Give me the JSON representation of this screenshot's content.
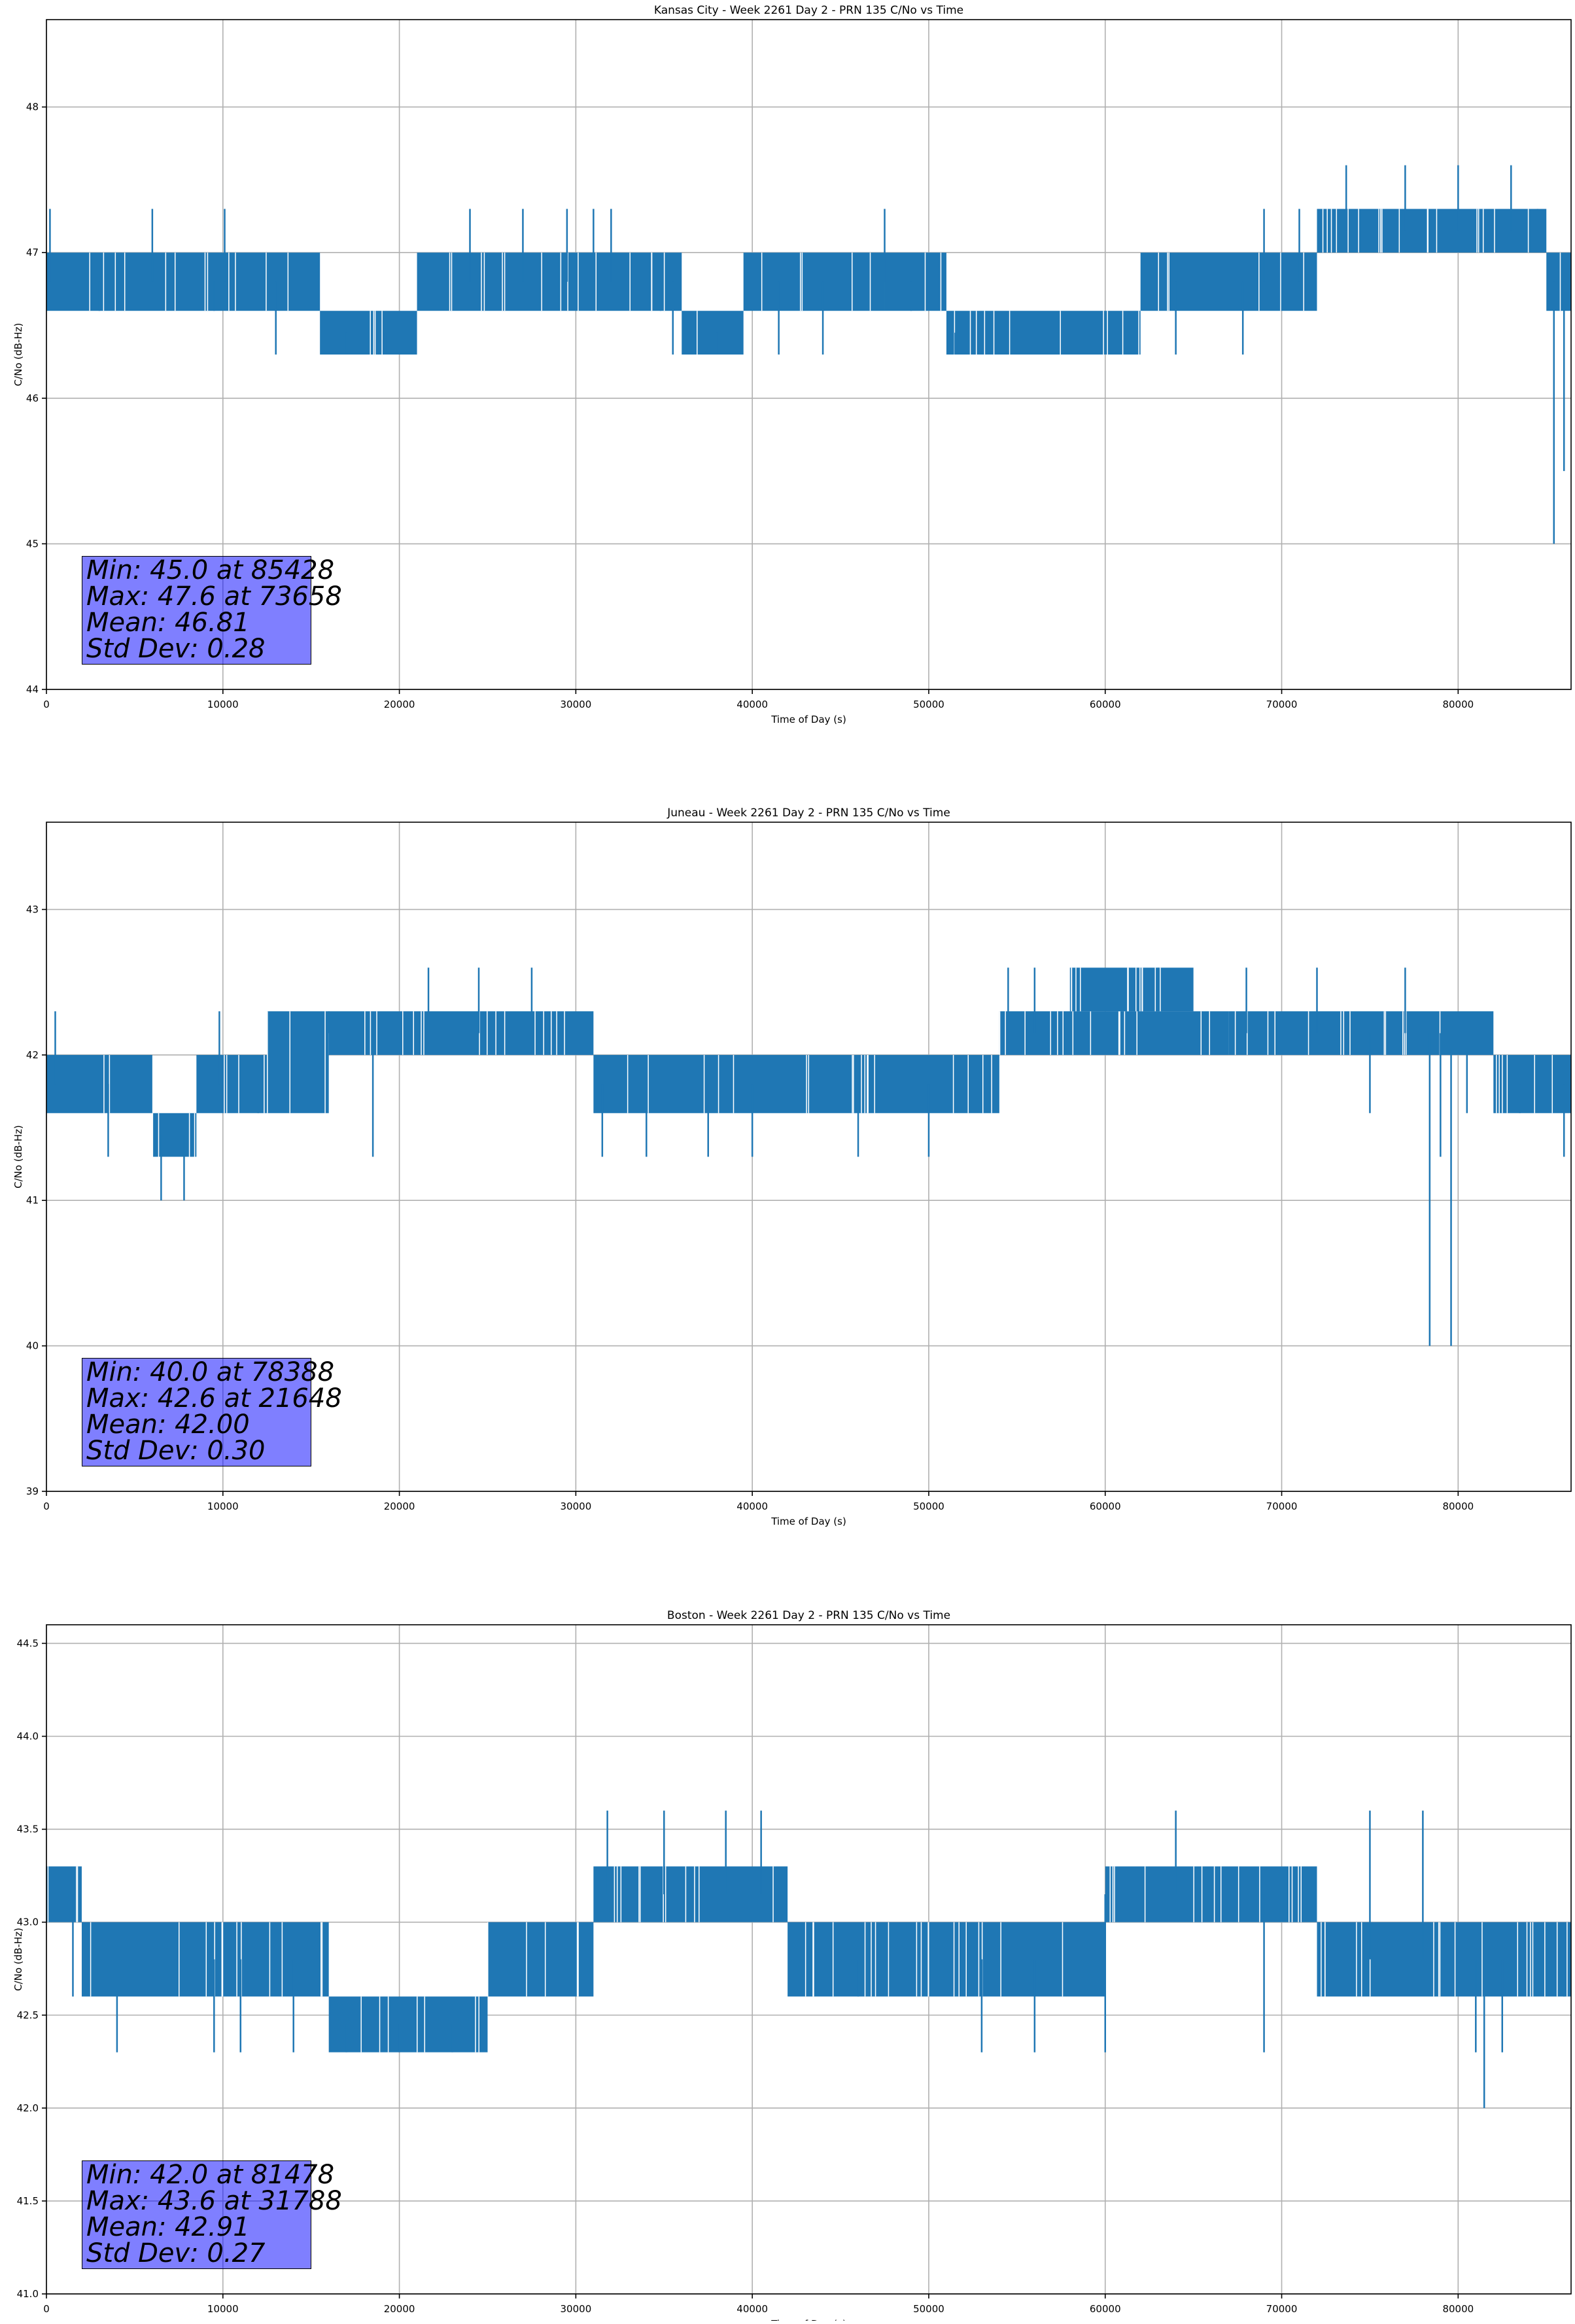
{
  "chart_data": [
    {
      "type": "line",
      "title": "Kansas City - Week 2261 Day 2 - PRN 135 C/No vs Time",
      "xlabel": "Time of Day (s)",
      "ylabel": "C/No (dB-Hz)",
      "xlim": [
        0,
        86400
      ],
      "ylim": [
        44.0,
        48.6
      ],
      "xticks": [
        0,
        10000,
        20000,
        30000,
        40000,
        50000,
        60000,
        70000,
        80000
      ],
      "yticks": [
        44,
        45,
        46,
        47,
        48
      ],
      "ytick_labels": [
        "44",
        "45",
        "46",
        "47",
        "48"
      ],
      "grid": true,
      "color": "#1f77b4",
      "stats": [
        "Min: 45.0 at 85428",
        "Max: 47.6 at 73658",
        "Mean: 46.81",
        "Std Dev: 0.28"
      ],
      "bands": [
        [
          0,
          15500,
          46.6,
          47.0
        ],
        [
          15500,
          21000,
          46.3,
          46.6
        ],
        [
          21000,
          36000,
          46.6,
          47.0
        ],
        [
          36000,
          39500,
          46.3,
          46.6
        ],
        [
          39500,
          47500,
          46.6,
          47.0
        ],
        [
          47500,
          51000,
          46.6,
          47.0
        ],
        [
          51000,
          62000,
          46.3,
          46.6
        ],
        [
          62000,
          72000,
          46.6,
          47.0
        ],
        [
          72000,
          85000,
          47.0,
          47.3
        ],
        [
          85000,
          86400,
          46.6,
          47.0
        ]
      ],
      "series": [
        {
          "x": [
            200,
            3000,
            6000,
            9500,
            10100,
            13000,
            17000,
            19200,
            24000,
            27000,
            29500,
            31000,
            32000,
            34800,
            35500,
            38000,
            41500,
            44000,
            47500,
            49000,
            51500,
            55000,
            60000,
            64000,
            67800,
            69000,
            71000,
            73658,
            77000,
            80000,
            83000,
            84500,
            85428,
            86000
          ],
          "y": [
            47.3,
            46.6,
            47.3,
            46.6,
            47.3,
            46.3,
            46.3,
            46.3,
            47.3,
            47.3,
            47.3,
            47.3,
            47.3,
            46.6,
            46.3,
            46.3,
            46.3,
            46.3,
            47.3,
            46.6,
            46.3,
            46.3,
            46.3,
            46.3,
            46.3,
            47.3,
            47.3,
            47.6,
            47.6,
            47.6,
            47.6,
            47.3,
            45.0,
            45.5
          ]
        }
      ]
    },
    {
      "type": "line",
      "title": "Juneau - Week 2261 Day 2 - PRN 135 C/No vs Time",
      "xlabel": "Time of Day (s)",
      "ylabel": "C/No (dB-Hz)",
      "xlim": [
        0,
        86400
      ],
      "ylim": [
        39.0,
        43.6
      ],
      "xticks": [
        0,
        10000,
        20000,
        30000,
        40000,
        50000,
        60000,
        70000,
        80000
      ],
      "yticks": [
        39,
        40,
        41,
        42,
        43
      ],
      "ytick_labels": [
        "39",
        "40",
        "41",
        "42",
        "43"
      ],
      "grid": true,
      "color": "#1f77b4",
      "stats": [
        "Min: 40.0 at 78388",
        "Max: 42.6 at 21648",
        "Mean: 42.00",
        "Std Dev: 0.30"
      ],
      "bands": [
        [
          0,
          6000,
          41.6,
          42.0
        ],
        [
          6000,
          8500,
          41.3,
          41.6
        ],
        [
          8500,
          12500,
          41.6,
          42.0
        ],
        [
          12500,
          16000,
          41.6,
          42.3
        ],
        [
          16000,
          31000,
          42.0,
          42.3
        ],
        [
          31000,
          54000,
          41.6,
          42.0
        ],
        [
          54000,
          67000,
          42.0,
          42.3
        ],
        [
          58000,
          65000,
          42.3,
          42.6
        ],
        [
          67000,
          82000,
          42.0,
          42.3
        ],
        [
          82000,
          86400,
          41.6,
          42.0
        ]
      ],
      "series": [
        {
          "x": [
            500,
            3500,
            6500,
            7800,
            9800,
            12000,
            16000,
            18500,
            21648,
            24500,
            27500,
            31500,
            34000,
            37500,
            40000,
            46000,
            50000,
            54500,
            56000,
            63000,
            68000,
            72000,
            75000,
            77000,
            78388,
            79000,
            79600,
            80500,
            83500,
            86000
          ],
          "y": [
            42.3,
            41.3,
            41.0,
            41.0,
            42.3,
            41.6,
            42.3,
            41.3,
            42.6,
            42.6,
            42.6,
            41.3,
            41.3,
            41.3,
            41.3,
            41.3,
            41.3,
            42.6,
            42.6,
            42.6,
            42.6,
            42.6,
            41.6,
            42.6,
            40.0,
            41.3,
            40.0,
            41.6,
            41.6,
            41.3
          ]
        }
      ]
    },
    {
      "type": "line",
      "title": "Boston - Week 2261 Day 2 - PRN 135 C/No vs Time",
      "xlabel": "Time of Day (s)",
      "ylabel": "C/No (dB-Hz)",
      "xlim": [
        0,
        86400
      ],
      "ylim": [
        41.0,
        44.6
      ],
      "xticks": [
        0,
        10000,
        20000,
        30000,
        40000,
        50000,
        60000,
        70000,
        80000
      ],
      "yticks": [
        41.0,
        41.5,
        42.0,
        42.5,
        43.0,
        43.5,
        44.0,
        44.5
      ],
      "ytick_labels": [
        "41.0",
        "41.5",
        "42.0",
        "42.5",
        "43.0",
        "43.5",
        "44.0",
        "44.5"
      ],
      "grid": true,
      "color": "#1f77b4",
      "stats": [
        "Min: 42.0 at 81478",
        "Max: 43.6 at 31788",
        "Mean: 42.91",
        "Std Dev: 0.27"
      ],
      "bands": [
        [
          0,
          2000,
          43.0,
          43.3
        ],
        [
          2000,
          16000,
          42.6,
          43.0
        ],
        [
          16000,
          25000,
          42.3,
          42.6
        ],
        [
          25000,
          31000,
          42.6,
          43.0
        ],
        [
          31000,
          42000,
          43.0,
          43.3
        ],
        [
          42000,
          60000,
          42.6,
          43.0
        ],
        [
          60000,
          72000,
          43.0,
          43.3
        ],
        [
          72000,
          86400,
          42.6,
          43.0
        ]
      ],
      "series": [
        {
          "x": [
            1500,
            4000,
            9500,
            11000,
            14000,
            17000,
            20000,
            23000,
            31788,
            35000,
            38500,
            40500,
            46000,
            53000,
            56000,
            60000,
            64000,
            69000,
            75000,
            78000,
            81000,
            81478,
            82500,
            86000
          ],
          "y": [
            42.6,
            42.3,
            42.3,
            42.3,
            42.3,
            42.3,
            42.3,
            42.3,
            43.6,
            43.6,
            43.6,
            43.6,
            42.6,
            42.3,
            42.3,
            42.3,
            43.6,
            42.3,
            43.6,
            43.6,
            42.3,
            42.0,
            42.3,
            42.6
          ]
        }
      ]
    }
  ]
}
